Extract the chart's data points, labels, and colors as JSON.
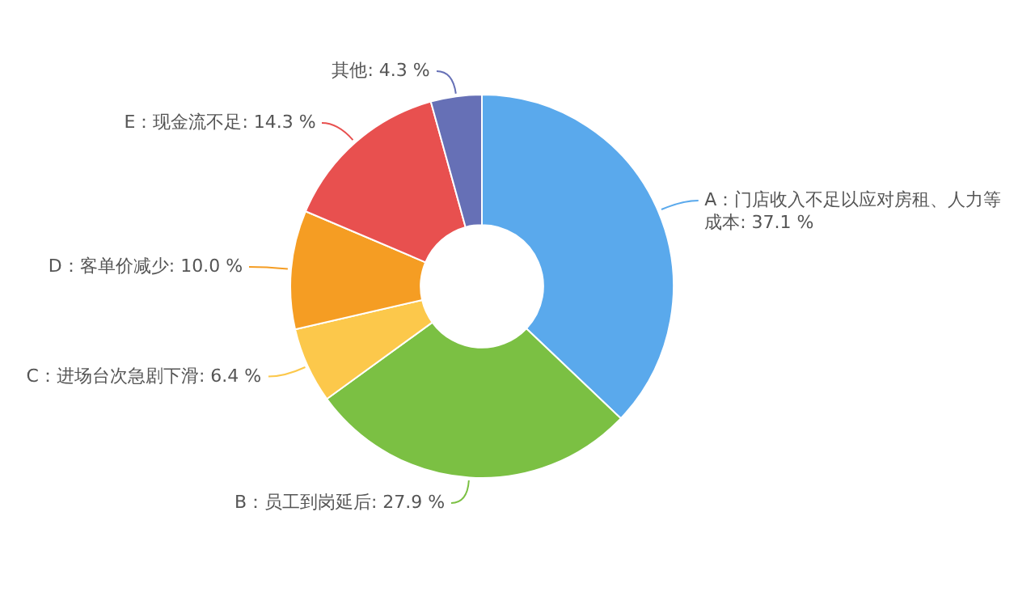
{
  "chart_data": {
    "type": "donut",
    "categories": [
      "A：门店收入不足以应对房租、人力等成本",
      "B：员工到岗延后",
      "C：进场台次急剧下滑",
      "D：客单价减少",
      "E：现金流不足",
      "其他"
    ],
    "values": [
      37.1,
      27.9,
      6.4,
      10.0,
      14.3,
      4.3
    ],
    "colors": [
      "#5aa9ec",
      "#7bc043",
      "#fcc84b",
      "#f59d23",
      "#e8504f",
      "#6670b6"
    ],
    "value_labels": [
      ": 37.1 %",
      ": 27.9 %",
      ": 6.4 %",
      ": 10.0 %",
      ": 14.3 %",
      ": 4.3 %"
    ],
    "legend": false
  }
}
